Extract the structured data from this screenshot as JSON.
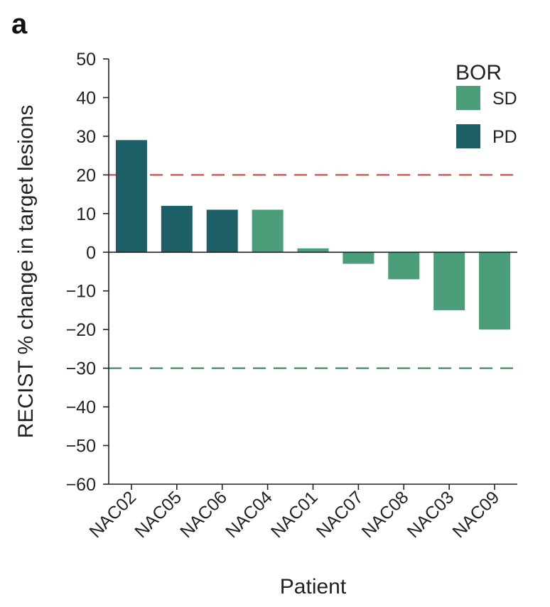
{
  "panel_label": "a",
  "colors": {
    "SD": "#4a9e7a",
    "PD": "#1d5f66",
    "pd_threshold": "#d94a42",
    "pr_threshold": "#3f8f5a"
  },
  "chart_data": {
    "type": "bar",
    "title": "",
    "xlabel": "Patient",
    "ylabel": "RECIST % change in target lesions",
    "ylim": [
      -60,
      50
    ],
    "yticks": [
      50,
      40,
      30,
      20,
      10,
      0,
      -10,
      -20,
      -30,
      -40,
      -50,
      -60
    ],
    "ytick_labels": [
      "50",
      "40",
      "30",
      "20",
      "10",
      "0",
      "−10",
      "−20",
      "−30",
      "−40",
      "−50",
      "−60"
    ],
    "categories": [
      "NAC02",
      "NAC05",
      "NAC06",
      "NAC04",
      "NAC01",
      "NAC07",
      "NAC08",
      "NAC03",
      "NAC09"
    ],
    "values": [
      29,
      12,
      11,
      11,
      1,
      -3,
      -7,
      -15,
      -20
    ],
    "groups": [
      "PD",
      "PD",
      "PD",
      "SD",
      "SD",
      "SD",
      "SD",
      "SD",
      "SD"
    ],
    "reference_lines": [
      {
        "y": 20,
        "style": "dashed",
        "color_key": "pd_threshold"
      },
      {
        "y": -30,
        "style": "dashed",
        "color_key": "pr_threshold"
      }
    ],
    "legend": {
      "title": "BOR",
      "position": "top-right",
      "entries": [
        {
          "label": "SD",
          "color_key": "SD"
        },
        {
          "label": "PD",
          "color_key": "PD"
        }
      ]
    }
  }
}
